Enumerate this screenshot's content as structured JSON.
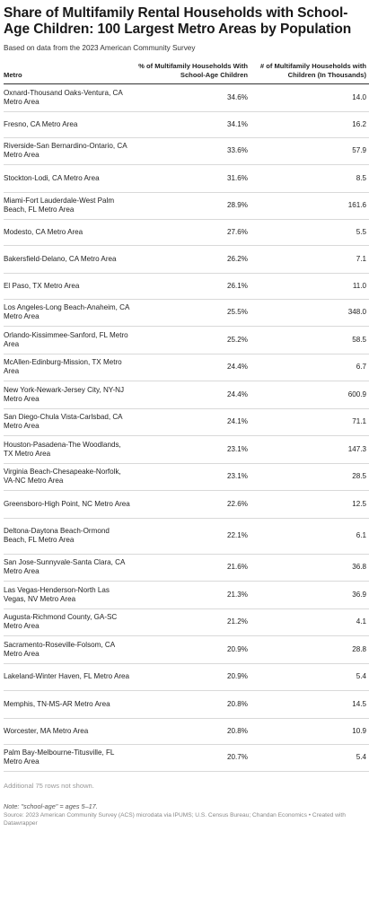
{
  "title": "Share of Multifamily Rental Households with School-Age Children: 100 Largest Metro Areas by Population",
  "subtitle": "Based on data from the 2023 American Community Survey",
  "chart_data": {
    "type": "table",
    "columns": [
      "Metro",
      "% of Multifamily Households With School-Age Children",
      "# of Multifamily Households with Children (In Thousands)"
    ],
    "rows": [
      {
        "metro": "Oxnard-Thousand Oaks-Ventura, CA Metro Area",
        "pct": "34.6%",
        "count": "14.0"
      },
      {
        "metro": "Fresno, CA Metro Area",
        "pct": "34.1%",
        "count": "16.2"
      },
      {
        "metro": "Riverside-San Bernardino-Ontario, CA Metro Area",
        "pct": "33.6%",
        "count": "57.9"
      },
      {
        "metro": "Stockton-Lodi, CA Metro Area",
        "pct": "31.6%",
        "count": "8.5"
      },
      {
        "metro": "Miami-Fort Lauderdale-West Palm Beach, FL Metro Area",
        "pct": "28.9%",
        "count": "161.6"
      },
      {
        "metro": "Modesto, CA Metro Area",
        "pct": "27.6%",
        "count": "5.5"
      },
      {
        "metro": "Bakersfield-Delano, CA Metro Area",
        "pct": "26.2%",
        "count": "7.1"
      },
      {
        "metro": "El Paso, TX Metro Area",
        "pct": "26.1%",
        "count": "11.0"
      },
      {
        "metro": "Los Angeles-Long Beach-Anaheim, CA Metro Area",
        "pct": "25.5%",
        "count": "348.0"
      },
      {
        "metro": "Orlando-Kissimmee-Sanford, FL Metro Area",
        "pct": "25.2%",
        "count": "58.5"
      },
      {
        "metro": "McAllen-Edinburg-Mission, TX Metro Area",
        "pct": "24.4%",
        "count": "6.7"
      },
      {
        "metro": "New York-Newark-Jersey City, NY-NJ Metro Area",
        "pct": "24.4%",
        "count": "600.9"
      },
      {
        "metro": "San Diego-Chula Vista-Carlsbad, CA Metro Area",
        "pct": "24.1%",
        "count": "71.1"
      },
      {
        "metro": "Houston-Pasadena-The Woodlands, TX Metro Area",
        "pct": "23.1%",
        "count": "147.3"
      },
      {
        "metro": "Virginia Beach-Chesapeake-Norfolk, VA-NC Metro Area",
        "pct": "23.1%",
        "count": "28.5"
      },
      {
        "metro": "Greensboro-High Point, NC Metro Area",
        "pct": "22.6%",
        "count": "12.5"
      },
      {
        "metro": "Deltona-Daytona Beach-Ormond Beach, FL Metro Area",
        "pct": "22.1%",
        "count": "6.1"
      },
      {
        "metro": "San Jose-Sunnyvale-Santa Clara, CA Metro Area",
        "pct": "21.6%",
        "count": "36.8"
      },
      {
        "metro": "Las Vegas-Henderson-North Las Vegas, NV Metro Area",
        "pct": "21.3%",
        "count": "36.9"
      },
      {
        "metro": "Augusta-Richmond County, GA-SC Metro Area",
        "pct": "21.2%",
        "count": "4.1"
      },
      {
        "metro": "Sacramento-Roseville-Folsom, CA Metro Area",
        "pct": "20.9%",
        "count": "28.8"
      },
      {
        "metro": "Lakeland-Winter Haven, FL Metro Area",
        "pct": "20.9%",
        "count": "5.4"
      },
      {
        "metro": "Memphis, TN-MS-AR Metro Area",
        "pct": "20.8%",
        "count": "14.5"
      },
      {
        "metro": "Worcester, MA Metro Area",
        "pct": "20.8%",
        "count": "10.9"
      },
      {
        "metro": "Palm Bay-Melbourne-Titusville, FL Metro Area",
        "pct": "20.7%",
        "count": "5.4"
      }
    ]
  },
  "more_rows": "Additional 75 rows not shown.",
  "note": "Note: \"school-age\" = ages 5–17.",
  "source": "Source: 2023 American Community Survey (ACS) microdata via IPUMS; U.S. Census Bureau; Chandan Economics • Created with Datawrapper"
}
